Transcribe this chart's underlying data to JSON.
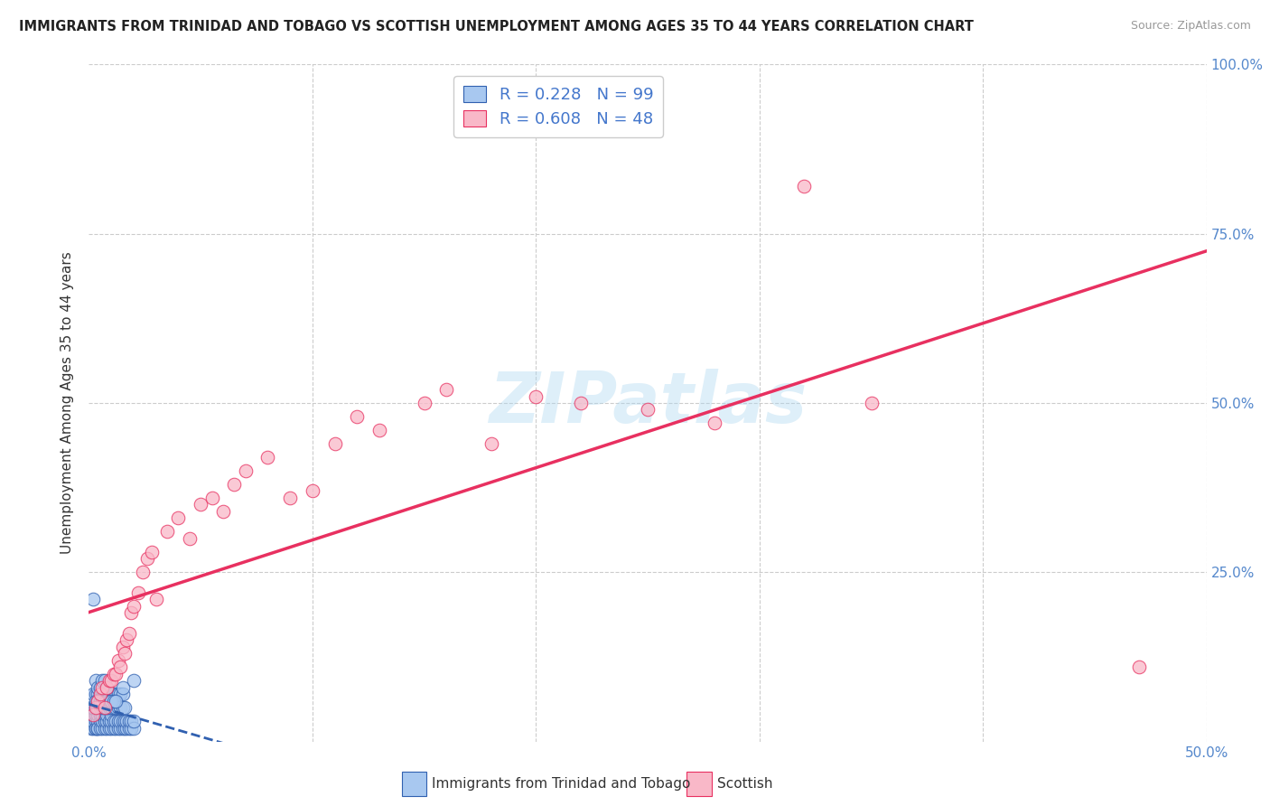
{
  "title": "IMMIGRANTS FROM TRINIDAD AND TOBAGO VS SCOTTISH UNEMPLOYMENT AMONG AGES 35 TO 44 YEARS CORRELATION CHART",
  "source": "Source: ZipAtlas.com",
  "ylabel": "Unemployment Among Ages 35 to 44 years",
  "xlim": [
    0.0,
    0.5
  ],
  "ylim": [
    0.0,
    1.0
  ],
  "R_blue": 0.228,
  "N_blue": 99,
  "R_pink": 0.608,
  "N_pink": 48,
  "blue_color": "#A8C8F0",
  "pink_color": "#F9B8C8",
  "blue_line_color": "#3060B0",
  "pink_line_color": "#E83060",
  "watermark": "ZIPatlas",
  "legend_labels": [
    "Immigrants from Trinidad and Tobago",
    "Scottish"
  ],
  "blue_scatter_x": [
    0.001,
    0.001,
    0.002,
    0.002,
    0.002,
    0.003,
    0.003,
    0.003,
    0.003,
    0.004,
    0.004,
    0.004,
    0.004,
    0.005,
    0.005,
    0.005,
    0.006,
    0.006,
    0.006,
    0.007,
    0.007,
    0.007,
    0.008,
    0.008,
    0.008,
    0.009,
    0.009,
    0.01,
    0.01,
    0.01,
    0.011,
    0.011,
    0.012,
    0.012,
    0.013,
    0.013,
    0.014,
    0.014,
    0.015,
    0.015,
    0.016,
    0.016,
    0.017,
    0.017,
    0.018,
    0.018,
    0.019,
    0.019,
    0.02,
    0.02,
    0.001,
    0.002,
    0.003,
    0.004,
    0.005,
    0.006,
    0.007,
    0.008,
    0.009,
    0.01,
    0.011,
    0.012,
    0.013,
    0.014,
    0.015,
    0.016,
    0.002,
    0.003,
    0.004,
    0.005,
    0.006,
    0.007,
    0.008,
    0.009,
    0.01,
    0.011,
    0.012,
    0.013,
    0.014,
    0.015,
    0.003,
    0.004,
    0.005,
    0.006,
    0.007,
    0.008,
    0.009,
    0.01,
    0.011,
    0.012,
    0.002,
    0.003,
    0.004,
    0.005,
    0.006,
    0.007,
    0.008,
    0.015,
    0.02
  ],
  "blue_scatter_y": [
    0.02,
    0.03,
    0.02,
    0.03,
    0.04,
    0.02,
    0.03,
    0.04,
    0.02,
    0.02,
    0.03,
    0.04,
    0.02,
    0.03,
    0.02,
    0.04,
    0.02,
    0.03,
    0.04,
    0.02,
    0.03,
    0.04,
    0.02,
    0.03,
    0.04,
    0.02,
    0.03,
    0.02,
    0.03,
    0.04,
    0.02,
    0.03,
    0.02,
    0.03,
    0.02,
    0.03,
    0.02,
    0.03,
    0.02,
    0.03,
    0.02,
    0.03,
    0.02,
    0.03,
    0.02,
    0.03,
    0.02,
    0.03,
    0.02,
    0.03,
    0.05,
    0.05,
    0.05,
    0.05,
    0.05,
    0.05,
    0.05,
    0.05,
    0.05,
    0.05,
    0.05,
    0.05,
    0.05,
    0.05,
    0.05,
    0.05,
    0.07,
    0.07,
    0.07,
    0.07,
    0.07,
    0.07,
    0.07,
    0.07,
    0.07,
    0.07,
    0.07,
    0.07,
    0.07,
    0.07,
    0.06,
    0.06,
    0.06,
    0.06,
    0.06,
    0.06,
    0.06,
    0.06,
    0.06,
    0.06,
    0.21,
    0.09,
    0.08,
    0.08,
    0.09,
    0.09,
    0.08,
    0.08,
    0.09
  ],
  "pink_scatter_x": [
    0.002,
    0.003,
    0.004,
    0.005,
    0.006,
    0.007,
    0.008,
    0.009,
    0.01,
    0.011,
    0.012,
    0.013,
    0.014,
    0.015,
    0.016,
    0.017,
    0.018,
    0.019,
    0.02,
    0.022,
    0.024,
    0.026,
    0.028,
    0.03,
    0.035,
    0.04,
    0.045,
    0.05,
    0.055,
    0.06,
    0.065,
    0.07,
    0.08,
    0.09,
    0.1,
    0.11,
    0.12,
    0.13,
    0.15,
    0.16,
    0.18,
    0.2,
    0.22,
    0.25,
    0.28,
    0.32,
    0.35,
    0.47
  ],
  "pink_scatter_y": [
    0.04,
    0.05,
    0.06,
    0.07,
    0.08,
    0.05,
    0.08,
    0.09,
    0.09,
    0.1,
    0.1,
    0.12,
    0.11,
    0.14,
    0.13,
    0.15,
    0.16,
    0.19,
    0.2,
    0.22,
    0.25,
    0.27,
    0.28,
    0.21,
    0.31,
    0.33,
    0.3,
    0.35,
    0.36,
    0.34,
    0.38,
    0.4,
    0.42,
    0.36,
    0.37,
    0.44,
    0.48,
    0.46,
    0.5,
    0.52,
    0.44,
    0.51,
    0.5,
    0.49,
    0.47,
    0.82,
    0.5,
    0.11
  ],
  "blue_trend": [
    0.0,
    0.5,
    0.01,
    0.25
  ],
  "pink_trend": [
    0.0,
    0.5,
    0.02,
    0.5
  ]
}
